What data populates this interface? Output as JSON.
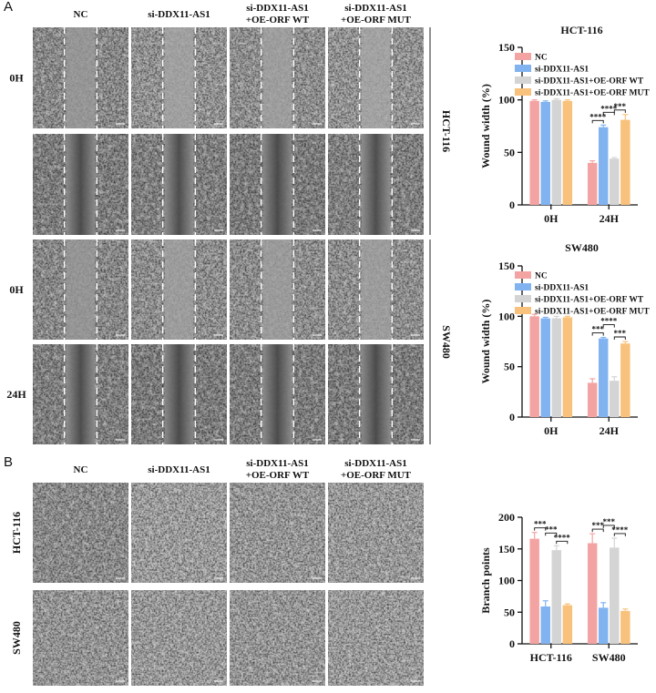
{
  "panel_a": {
    "label": "A",
    "column_headers": [
      [
        "NC"
      ],
      [
        "si-DDX11-AS1"
      ],
      [
        "si-DDX11-AS1",
        "+OE-ORF WT"
      ],
      [
        "si-DDX11-AS1",
        "+OE-ORF MUT"
      ]
    ],
    "groups": [
      {
        "name": "HCT-116",
        "row_labels": [
          "0H",
          null
        ]
      },
      {
        "name": "SW480",
        "row_labels": [
          "0H",
          "24H"
        ]
      }
    ]
  },
  "panel_b": {
    "label": "B",
    "column_headers": [
      [
        "NC"
      ],
      [
        "si-DDX11-AS1"
      ],
      [
        "si-DDX11-AS1",
        "+OE-ORF WT"
      ],
      [
        "si-DDX11-AS1",
        "+OE-ORF MUT"
      ]
    ],
    "row_labels": [
      "HCT-116",
      "SW480"
    ]
  },
  "chart_data": [
    {
      "type": "bar",
      "title": "HCT-116",
      "y_label": "Wound width (%)",
      "categories": [
        "0H",
        "24H"
      ],
      "series": [
        {
          "name": "NC",
          "color": "#f4a3a3",
          "values": [
            99,
            40
          ],
          "errors": [
            1,
            2
          ]
        },
        {
          "name": "si-DDX11-AS1",
          "color": "#80b3f0",
          "values": [
            98,
            74
          ],
          "errors": [
            1,
            2
          ]
        },
        {
          "name": "si-DDX11-AS1+OE-ORF WT",
          "color": "#d4d4d4",
          "values": [
            100,
            44
          ],
          "errors": [
            1,
            1
          ]
        },
        {
          "name": "si-DDX11-AS1+OE-ORF MUT",
          "color": "#f8c27c",
          "values": [
            99,
            81
          ],
          "errors": [
            1,
            5
          ]
        }
      ],
      "annotations": [
        null,
        [
          "****",
          "****",
          "***"
        ]
      ],
      "ylim": [
        0,
        150
      ],
      "yticks": [
        0,
        50,
        100,
        150
      ],
      "legend": "upper right"
    },
    {
      "type": "bar",
      "title": "SW480",
      "y_label": "Wound width (%)",
      "categories": [
        "0H",
        "24H"
      ],
      "series": [
        {
          "name": "NC",
          "color": "#f4a3a3",
          "values": [
            100,
            34
          ],
          "errors": [
            2,
            4
          ]
        },
        {
          "name": "si-DDX11-AS1",
          "color": "#80b3f0",
          "values": [
            98,
            78
          ],
          "errors": [
            1,
            1
          ]
        },
        {
          "name": "si-DDX11-AS1+OE-ORF WT",
          "color": "#d4d4d4",
          "values": [
            98,
            36
          ],
          "errors": [
            2,
            4
          ]
        },
        {
          "name": "si-DDX11-AS1+OE-ORF MUT",
          "color": "#f8c27c",
          "values": [
            99,
            73
          ],
          "errors": [
            1,
            2
          ]
        }
      ],
      "annotations": [
        null,
        [
          "***",
          "****",
          "***"
        ]
      ],
      "ylim": [
        0,
        150
      ],
      "yticks": [
        0,
        50,
        100,
        150
      ],
      "legend": "upper right"
    },
    {
      "type": "bar",
      "y_label": "Branch points",
      "categories": [
        "HCT-116",
        "SW480"
      ],
      "series": [
        {
          "color": "#f4a3a3",
          "values": [
            166,
            159
          ],
          "errors": [
            10,
            15
          ]
        },
        {
          "color": "#80b3f0",
          "values": [
            59,
            57
          ],
          "errors": [
            9,
            8
          ]
        },
        {
          "color": "#d4d4d4",
          "values": [
            148,
            152
          ],
          "errors": [
            7,
            15
          ]
        },
        {
          "color": "#f8c27c",
          "values": [
            61,
            52
          ],
          "errors": [
            2,
            3
          ]
        }
      ],
      "annotations": [
        [
          "***",
          "***",
          "****"
        ],
        [
          "***",
          "***",
          "****"
        ]
      ],
      "ylim": [
        0,
        200
      ],
      "yticks": [
        0,
        50,
        100,
        150,
        200
      ]
    }
  ]
}
